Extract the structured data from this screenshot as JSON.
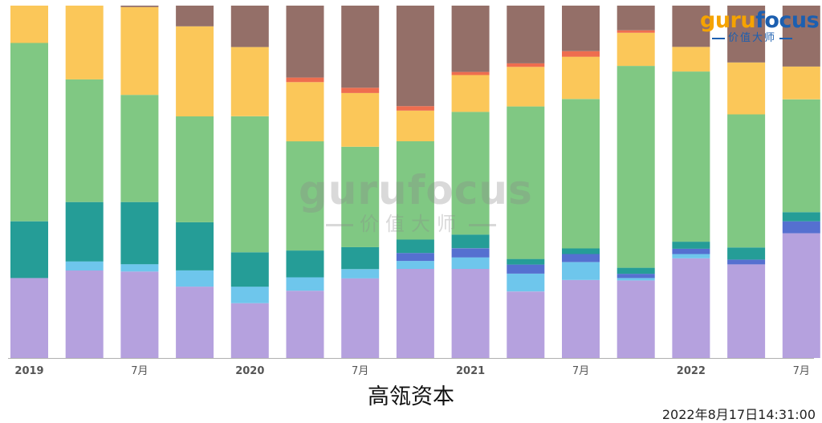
{
  "chart_data": {
    "type": "bar",
    "stacked": "percent",
    "title": "高瓴资本",
    "timestamp": "2022年8月17日14:31:00",
    "x_labels": [
      {
        "index": 0,
        "text": "2019",
        "bold": true
      },
      {
        "index": 2,
        "text": "7月",
        "bold": false
      },
      {
        "index": 4,
        "text": "2020",
        "bold": true
      },
      {
        "index": 6,
        "text": "7月",
        "bold": false
      },
      {
        "index": 8,
        "text": "2021",
        "bold": true
      },
      {
        "index": 10,
        "text": "7月",
        "bold": false
      },
      {
        "index": 12,
        "text": "2022",
        "bold": true
      },
      {
        "index": 14,
        "text": "7月",
        "bold": false
      }
    ],
    "ylim": [
      0,
      100
    ],
    "grid": false,
    "legend": "none",
    "series": [
      {
        "color": "#b5a1de",
        "values": [
          22.7,
          24.9,
          24.6,
          20.3,
          15.6,
          19.1,
          22.7,
          25.9,
          25.4,
          19.0,
          22.3,
          22.0,
          28.3,
          27.0,
          35.4
        ]
      },
      {
        "color": "#6ec6ec",
        "values": [
          0,
          2.6,
          2.1,
          4.6,
          4.7,
          3.8,
          2.6,
          2.3,
          3.3,
          5.1,
          5.1,
          0.7,
          1.2,
          0,
          0
        ]
      },
      {
        "color": "#5570d0",
        "values": [
          0,
          0,
          0,
          0,
          0,
          0,
          0,
          2.3,
          2.6,
          2.6,
          2.3,
          1.2,
          1.5,
          1.4,
          3.4
        ]
      },
      {
        "color": "#259d97",
        "values": [
          16.1,
          16.9,
          17.7,
          13.7,
          9.8,
          7.6,
          6.3,
          3.9,
          3.9,
          1.6,
          1.6,
          1.7,
          2.0,
          3.5,
          2.6
        ]
      },
      {
        "color": "#80c883",
        "values": [
          50.6,
          34.9,
          30.5,
          30.1,
          38.7,
          31.0,
          28.6,
          28.6,
          35.0,
          43.6,
          42.7,
          57.3,
          48.3,
          38.4,
          32.0
        ]
      },
      {
        "color": "#fbc759",
        "values": [
          10.6,
          21.0,
          25.0,
          25.6,
          19.7,
          16.8,
          15.3,
          8.9,
          10.5,
          11.3,
          12.1,
          9.4,
          7.0,
          15.0,
          9.3
        ]
      },
      {
        "color": "#ee6d4f",
        "values": [
          0,
          0,
          0,
          0,
          0,
          1.3,
          1.5,
          1.3,
          0.9,
          1.0,
          1.6,
          0.7,
          0,
          0,
          0
        ]
      },
      {
        "color": "#946f68",
        "values": [
          0,
          0,
          0.4,
          5.9,
          11.8,
          20.4,
          23.4,
          29.2,
          18.9,
          16.5,
          13.0,
          7.0,
          11.7,
          16.4,
          17.3
        ]
      }
    ]
  },
  "logo": {
    "word_part1": "guru",
    "word_part2": "focus",
    "sub": "价值大师",
    "colors": {
      "primary": "#f5a300",
      "secondary": "#1c5fb0"
    }
  },
  "watermark": {
    "word": "gurufocus",
    "sub": "价值大师"
  }
}
